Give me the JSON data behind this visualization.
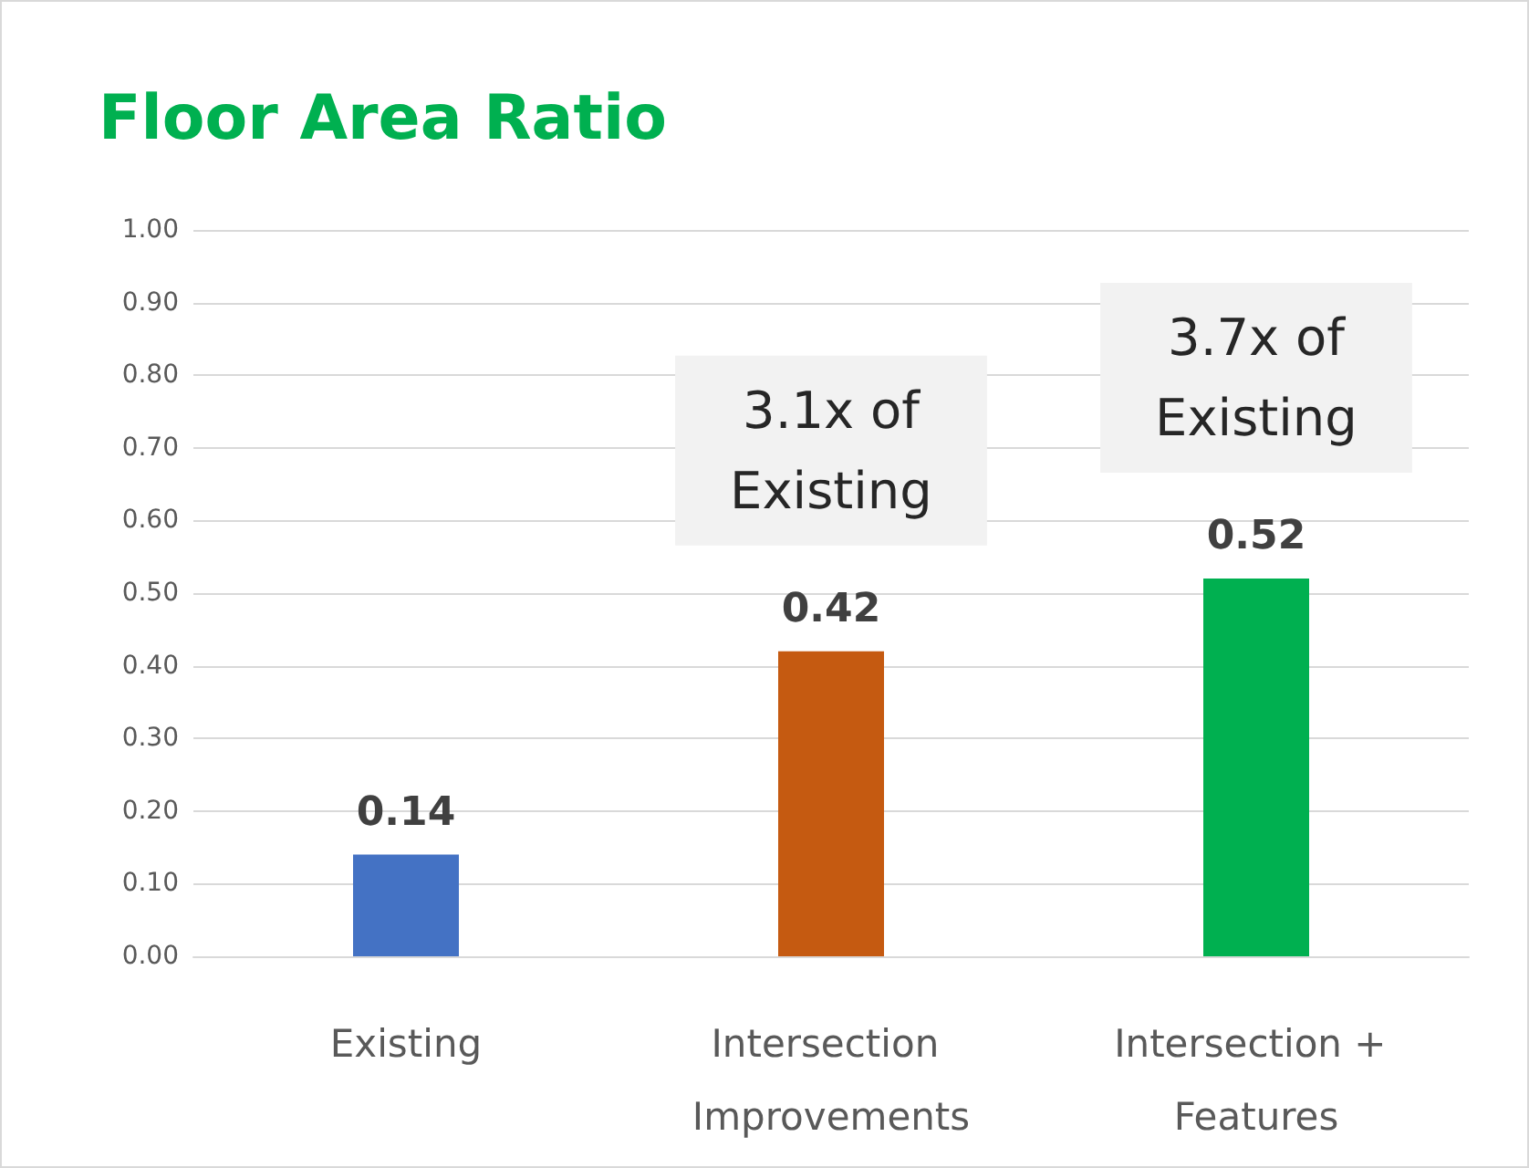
{
  "chart_data": {
    "type": "bar",
    "title": "Floor Area Ratio",
    "categories": [
      "Existing",
      "Intersection Improvements",
      "Intersection + Features"
    ],
    "values": [
      0.14,
      0.42,
      0.52
    ],
    "colors": [
      "#4472c4",
      "#c55a11",
      "#00b050"
    ],
    "data_labels": true,
    "ylim": [
      0,
      1
    ],
    "yticks": [
      {
        "value": 0,
        "label": "0.00"
      },
      {
        "value": 0.1,
        "label": "0.10"
      },
      {
        "value": 0.2,
        "label": "0.20"
      },
      {
        "value": 0.3,
        "label": "0.30"
      },
      {
        "value": 0.4,
        "label": "0.40"
      },
      {
        "value": 0.5,
        "label": "0.50"
      },
      {
        "value": 0.6,
        "label": "0.60"
      },
      {
        "value": 0.7,
        "label": "0.70"
      },
      {
        "value": 0.8,
        "label": "0.80"
      },
      {
        "value": 0.9,
        "label": "0.90"
      },
      {
        "value": 1,
        "label": "1.00"
      }
    ],
    "grid": "y",
    "annotations": [
      "3.1x of\nExisting",
      "3.7x of\nExisting"
    ]
  }
}
